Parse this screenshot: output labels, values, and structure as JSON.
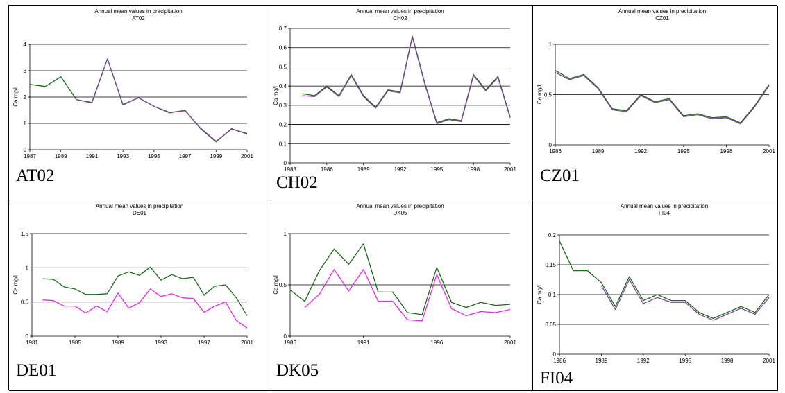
{
  "colors": {
    "green": "#107010",
    "magenta": "#f020f0",
    "purple": "#8040a0"
  },
  "chart_data": [
    {
      "type": "line",
      "label": "AT02",
      "title": "Annual mean values in precipitation",
      "subtitle": "AT02",
      "xlabel": "",
      "ylabel": "Ca mg/l",
      "xlim": [
        1987,
        2001
      ],
      "ylim": [
        0,
        4
      ],
      "xticks": [
        1987,
        1989,
        1991,
        1993,
        1995,
        1997,
        1999,
        2001
      ],
      "yticks": [
        0,
        1,
        2,
        3,
        4
      ],
      "grid": true,
      "legend": "none",
      "series": [
        {
          "color": "#107010",
          "x": [
            1987,
            1988,
            1989,
            1990,
            1991,
            1992,
            1993,
            1994,
            1995,
            1996,
            1997,
            1998,
            1999,
            2000,
            2001
          ],
          "y": [
            2.48,
            2.4,
            2.77,
            1.9,
            1.78,
            3.45,
            1.7,
            1.98,
            1.65,
            1.4,
            1.5,
            0.8,
            0.3,
            0.8,
            0.6
          ]
        },
        {
          "color": "#8040a0",
          "x": [
            1990,
            1991,
            1992,
            1993,
            1994,
            1995,
            1996,
            1997,
            1998,
            1999,
            2000,
            2001
          ],
          "y": [
            1.9,
            1.8,
            3.45,
            1.72,
            1.97,
            1.65,
            1.42,
            1.48,
            0.82,
            0.32,
            0.78,
            0.62
          ]
        }
      ]
    },
    {
      "type": "line",
      "label": "CH02",
      "title": "Annual mean values in precipitation",
      "subtitle": "CH02",
      "xlabel": "",
      "ylabel": "Ca mg/l",
      "xlim": [
        1983,
        2001
      ],
      "ylim": [
        0,
        0.7
      ],
      "xticks": [
        1983,
        1986,
        1989,
        1992,
        1995,
        1998,
        2001
      ],
      "yticks": [
        0,
        0.1,
        0.2,
        0.3,
        0.4,
        0.5,
        0.6,
        0.7
      ],
      "grid": true,
      "legend": "none",
      "series": [
        {
          "color": "#107010",
          "x": [
            1984,
            1985,
            1986,
            1987,
            1988,
            1989,
            1990,
            1991,
            1992,
            1993,
            1994,
            1995,
            1996,
            1997,
            1998,
            1999,
            2000,
            2001
          ],
          "y": [
            0.36,
            0.35,
            0.4,
            0.35,
            0.46,
            0.35,
            0.29,
            0.38,
            0.37,
            0.66,
            0.42,
            0.21,
            0.23,
            0.22,
            0.46,
            0.38,
            0.45,
            0.24
          ]
        },
        {
          "color": "#8040a0",
          "x": [
            1984,
            1985,
            1986,
            1987,
            1988,
            1989,
            1990,
            1991,
            1992,
            1993,
            1994,
            1995,
            1996,
            1997,
            1998,
            1999,
            2000,
            2001
          ],
          "y": [
            0.35,
            0.345,
            0.395,
            0.345,
            0.455,
            0.345,
            0.285,
            0.375,
            0.365,
            0.655,
            0.415,
            0.205,
            0.225,
            0.215,
            0.455,
            0.375,
            0.445,
            0.235
          ]
        }
      ]
    },
    {
      "type": "line",
      "label": "CZ01",
      "title": "Annual mean values in precipitation",
      "subtitle": "CZ01",
      "xlabel": "",
      "ylabel": "Ca mg/l",
      "xlim": [
        1986,
        2001
      ],
      "ylim": [
        0,
        1
      ],
      "xticks": [
        1986,
        1989,
        1992,
        1995,
        1998,
        2001
      ],
      "yticks": [
        0,
        0.5,
        1
      ],
      "grid": true,
      "legend": "none",
      "series": [
        {
          "color": "#107010",
          "x": [
            1986,
            1987,
            1988,
            1989,
            1990,
            1991,
            1992,
            1993,
            1994,
            1995,
            1996,
            1997,
            1998,
            1999,
            2000,
            2001
          ],
          "y": [
            0.74,
            0.66,
            0.7,
            0.57,
            0.36,
            0.34,
            0.5,
            0.43,
            0.46,
            0.29,
            0.31,
            0.27,
            0.28,
            0.22,
            0.39,
            0.6
          ]
        },
        {
          "color": "#8040a0",
          "x": [
            1986,
            1987,
            1988,
            1989,
            1990,
            1991,
            1992,
            1993,
            1994,
            1995,
            1996,
            1997,
            1998,
            1999,
            2000,
            2001
          ],
          "y": [
            0.72,
            0.65,
            0.69,
            0.56,
            0.35,
            0.33,
            0.49,
            0.42,
            0.45,
            0.28,
            0.3,
            0.26,
            0.27,
            0.21,
            0.38,
            0.59
          ]
        }
      ]
    },
    {
      "type": "line",
      "label": "DE01",
      "title": "Annual mean values in precipitation",
      "subtitle": "DE01",
      "xlabel": "",
      "ylabel": "Ca mg/l",
      "xlim": [
        1981,
        2001
      ],
      "ylim": [
        0,
        1.5
      ],
      "xticks": [
        1981,
        1985,
        1989,
        1993,
        1997,
        2001
      ],
      "yticks": [
        0,
        0.5,
        1,
        1.5
      ],
      "grid": true,
      "legend": "none",
      "series": [
        {
          "color": "#107010",
          "x": [
            1982,
            1983,
            1984,
            1985,
            1986,
            1987,
            1988,
            1989,
            1990,
            1991,
            1992,
            1993,
            1994,
            1995,
            1996,
            1997,
            1998,
            1999,
            2000,
            2001
          ],
          "y": [
            0.84,
            0.83,
            0.72,
            0.69,
            0.61,
            0.61,
            0.62,
            0.88,
            0.94,
            0.89,
            1.01,
            0.82,
            0.9,
            0.84,
            0.86,
            0.6,
            0.73,
            0.75,
            0.56,
            0.3
          ]
        },
        {
          "color": "#f020f0",
          "x": [
            1982,
            1983,
            1984,
            1985,
            1986,
            1987,
            1988,
            1989,
            1990,
            1991,
            1992,
            1993,
            1994,
            1995,
            1996,
            1997,
            1998,
            1999,
            2000,
            2001
          ],
          "y": [
            0.53,
            0.52,
            0.44,
            0.44,
            0.34,
            0.44,
            0.36,
            0.63,
            0.41,
            0.49,
            0.69,
            0.58,
            0.62,
            0.56,
            0.55,
            0.35,
            0.44,
            0.5,
            0.23,
            0.12
          ]
        }
      ]
    },
    {
      "type": "line",
      "label": "DK05",
      "title": "Annual mean values in precipitation",
      "subtitle": "DK05",
      "xlabel": "",
      "ylabel": "Ca mg/l",
      "xlim": [
        1986,
        2001
      ],
      "ylim": [
        0,
        1
      ],
      "xticks": [
        1986,
        1991,
        1996,
        2001
      ],
      "yticks": [
        0,
        0.5,
        1
      ],
      "grid": true,
      "legend": "none",
      "series": [
        {
          "color": "#107010",
          "x": [
            1986,
            1987,
            1988,
            1989,
            1990,
            1991,
            1992,
            1993,
            1994,
            1995,
            1996,
            1997,
            1998,
            1999,
            2000,
            2001
          ],
          "y": [
            0.45,
            0.34,
            0.64,
            0.85,
            0.7,
            0.9,
            0.43,
            0.43,
            0.23,
            0.21,
            0.67,
            0.33,
            0.28,
            0.33,
            0.3,
            0.31
          ]
        },
        {
          "color": "#f020f0",
          "x": [
            1987,
            1988,
            1989,
            1990,
            1991,
            1992,
            1993,
            1994,
            1995,
            1996,
            1997,
            1998,
            1999,
            2000,
            2001
          ],
          "y": [
            0.28,
            0.41,
            0.65,
            0.44,
            0.65,
            0.34,
            0.34,
            0.16,
            0.15,
            0.6,
            0.27,
            0.2,
            0.24,
            0.23,
            0.26
          ]
        }
      ]
    },
    {
      "type": "line",
      "label": "FI04",
      "title": "Annual mean values in precipitation",
      "subtitle": "FI04",
      "xlabel": "",
      "ylabel": "Ca mg/l",
      "xlim": [
        1986,
        2001
      ],
      "ylim": [
        0,
        0.2
      ],
      "xticks": [
        1986,
        1989,
        1992,
        1995,
        1998,
        2001
      ],
      "yticks": [
        0,
        0.05,
        0.1,
        0.15,
        0.2
      ],
      "grid": true,
      "legend": "none",
      "series": [
        {
          "color": "#107010",
          "x": [
            1986,
            1987,
            1988,
            1989,
            1990,
            1991,
            1992,
            1993,
            1994,
            1995,
            1996,
            1997,
            1998,
            1999,
            2000,
            2001
          ],
          "y": [
            0.19,
            0.14,
            0.14,
            0.12,
            0.08,
            0.13,
            0.09,
            0.1,
            0.09,
            0.09,
            0.07,
            0.06,
            0.07,
            0.08,
            0.07,
            0.1
          ]
        },
        {
          "color": "#8040a0",
          "x": [
            1989,
            1990,
            1991,
            1992,
            1993,
            1994,
            1995,
            1996,
            1997,
            1998,
            1999,
            2000,
            2001
          ],
          "y": [
            0.115,
            0.075,
            0.125,
            0.085,
            0.095,
            0.087,
            0.087,
            0.067,
            0.057,
            0.067,
            0.077,
            0.067,
            0.095
          ]
        }
      ]
    }
  ]
}
